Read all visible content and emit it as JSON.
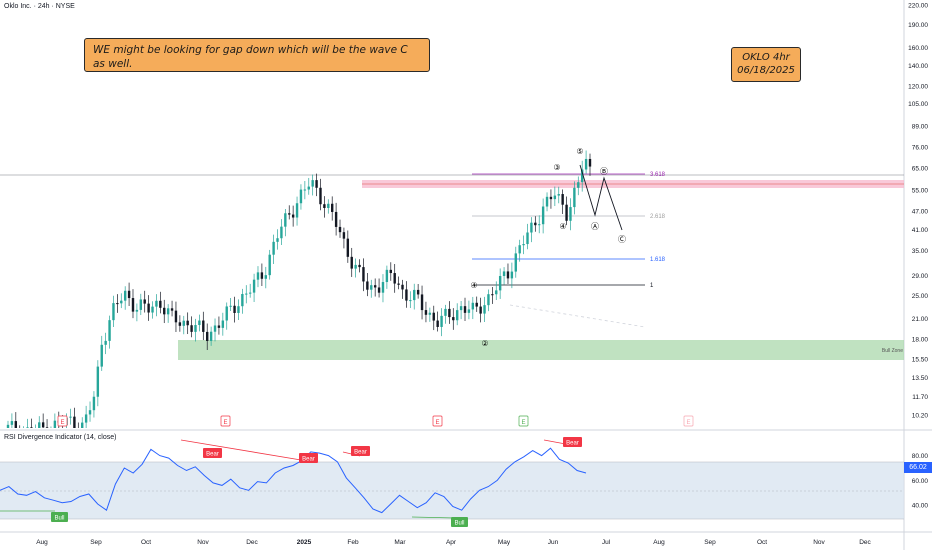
{
  "header": {
    "symbol": "Oklo Inc. · 24h · NYSE",
    "indicator": "RSI Divergence Indicator (14, close)"
  },
  "notes": {
    "main": "WE might be looking for gap down which will be the wave C as well.",
    "ticker_line": "OKLO 4hr",
    "date_line": "06/18/2025"
  },
  "colors": {
    "up": "#26a69a",
    "down": "#131722",
    "rsi_line": "#2962ff",
    "bear": "#f23645",
    "bull": "#4caf50",
    "support_zone": "#a5d6a7",
    "resistance_zone": "#f8bbd0",
    "note_bg": "#f5ac5a"
  },
  "chart_data": [
    {
      "type": "candlestick",
      "scale": "log",
      "y_ticks": [
        "220.00",
        "190.00",
        "160.00",
        "140.00",
        "120.00",
        "105.00",
        "89.00",
        "76.00",
        "65.00",
        "55.00",
        "47.00",
        "41.00",
        "35.00",
        "29.00",
        "25.00",
        "21.00",
        "18.00",
        "15.50",
        "13.50",
        "11.70",
        "10.20"
      ],
      "x_ticks": [
        "Aug",
        "Sep",
        "Oct",
        "Nov",
        "Dec",
        "2025",
        "Feb",
        "Mar",
        "Apr",
        "May",
        "Jun",
        "Jul",
        "Aug",
        "Sep",
        "Oct",
        "Nov",
        "Dec"
      ],
      "price_path": [
        [
          0,
          9.2
        ],
        [
          4,
          9.0
        ],
        [
          8,
          9.4
        ],
        [
          11,
          9.8
        ],
        [
          13,
          9.3
        ],
        [
          15,
          12.0
        ],
        [
          16,
          17.5
        ],
        [
          18,
          22.0
        ],
        [
          20,
          25.5
        ],
        [
          22,
          23.0
        ],
        [
          24,
          22.5
        ],
        [
          26,
          24.0
        ],
        [
          28,
          21.0
        ],
        [
          30,
          20.5
        ],
        [
          32,
          19.8
        ],
        [
          34,
          18.6
        ],
        [
          36,
          20.0
        ],
        [
          38,
          22.0
        ],
        [
          40,
          24.5
        ],
        [
          42,
          26.5
        ],
        [
          44,
          30.0
        ],
        [
          46,
          38.0
        ],
        [
          48,
          45.0
        ],
        [
          50,
          52.0
        ],
        [
          52,
          58.0
        ],
        [
          54,
          52.0
        ],
        [
          56,
          44.0
        ],
        [
          58,
          36.0
        ],
        [
          60,
          30.0
        ],
        [
          62,
          26.0
        ],
        [
          64,
          27.5
        ],
        [
          66,
          29.0
        ],
        [
          68,
          25.5
        ],
        [
          70,
          24.5
        ],
        [
          72,
          22.0
        ],
        [
          74,
          20.5
        ],
        [
          76,
          21.5
        ],
        [
          78,
          23.0
        ],
        [
          80,
          22.0
        ],
        [
          82,
          24.0
        ],
        [
          84,
          26.5
        ],
        [
          86,
          30.0
        ],
        [
          88,
          36.0
        ],
        [
          90,
          41.0
        ],
        [
          92,
          49.0
        ],
        [
          94,
          53.0
        ],
        [
          96,
          47.0
        ],
        [
          98,
          57.0
        ],
        [
          99,
          70.0
        ],
        [
          100,
          64.0
        ]
      ],
      "markers": {
        "earnings_letters": [
          "E",
          "E",
          "E",
          "E",
          "E"
        ],
        "wave_labels": [
          "③",
          "⑤",
          "Ⓑ",
          "④",
          "Ⓐ",
          "Ⓒ",
          "④",
          "②"
        ],
        "fib_labels": [
          "3.618",
          "2.618",
          "1.618",
          "1"
        ]
      },
      "zone_label": "Bull Zone"
    },
    {
      "type": "line",
      "series": [
        {
          "name": "RSI",
          "values": [
            52,
            55,
            49,
            48,
            51,
            46,
            44,
            42,
            43,
            47,
            49,
            41,
            36,
            57,
            70,
            66,
            73,
            85,
            80,
            78,
            72,
            68,
            71,
            64,
            58,
            56,
            61,
            54,
            52,
            59,
            58,
            66,
            70,
            72,
            76,
            83,
            82,
            80,
            75,
            62,
            54,
            46,
            37,
            34,
            41,
            48,
            43,
            38,
            42,
            50,
            47,
            39,
            36,
            45,
            52,
            55,
            60,
            69,
            75,
            79,
            84,
            80,
            86,
            77,
            74,
            68,
            66
          ]
        }
      ],
      "y_ticks": [
        "80.00",
        "60.00",
        "40.00"
      ],
      "last_value": "66.02",
      "signal_labels": [
        "Bear",
        "Bear",
        "Bear",
        "Bear",
        "Bull",
        "Bull"
      ],
      "range": [
        20,
        95
      ]
    }
  ]
}
